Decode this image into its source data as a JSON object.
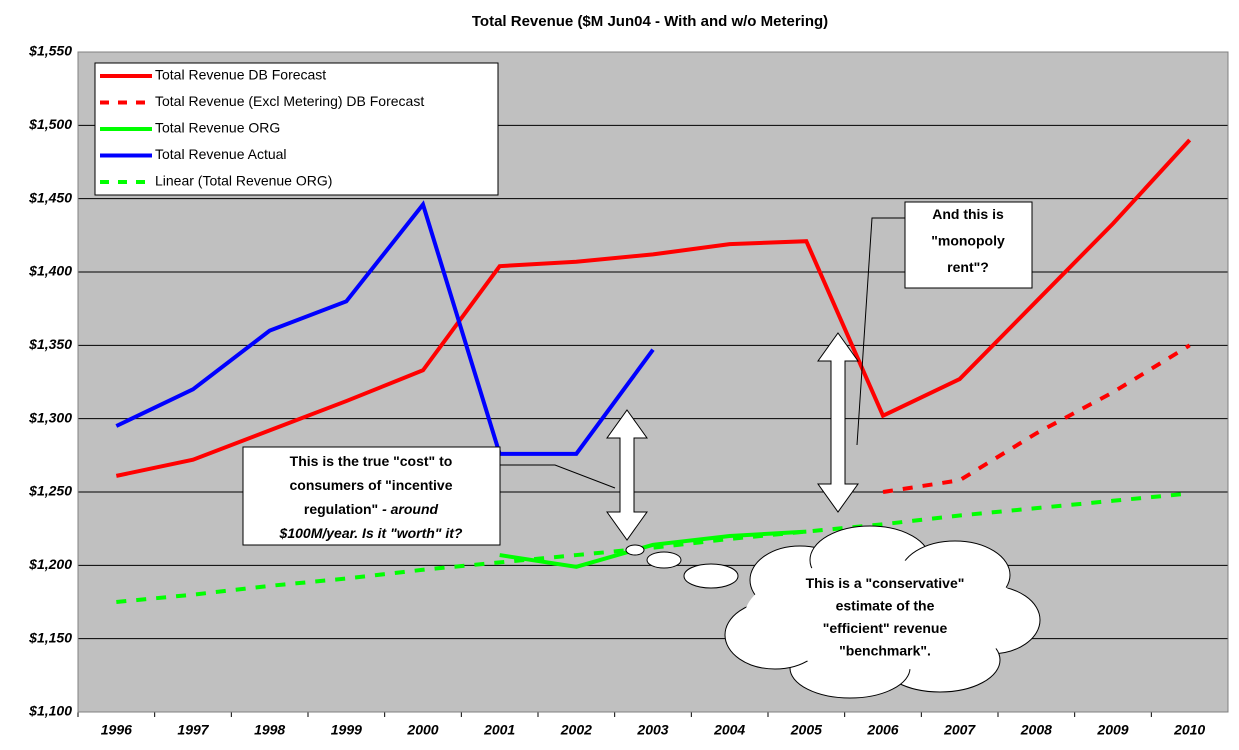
{
  "chart_data": {
    "type": "line",
    "title": "Total Revenue ($M Jun04 - With and w/o Metering)",
    "categories": [
      "1996",
      "1997",
      "1998",
      "1999",
      "2000",
      "2001",
      "2002",
      "2003",
      "2004",
      "2005",
      "2006",
      "2007",
      "2008",
      "2009",
      "2010"
    ],
    "ylim": [
      1100,
      1550
    ],
    "yticks": [
      {
        "value": 1100,
        "label": "$1,100"
      },
      {
        "value": 1150,
        "label": "$1,150"
      },
      {
        "value": 1200,
        "label": "$1,200"
      },
      {
        "value": 1250,
        "label": "$1,250"
      },
      {
        "value": 1300,
        "label": "$1,300"
      },
      {
        "value": 1350,
        "label": "$1,350"
      },
      {
        "value": 1400,
        "label": "$1,400"
      },
      {
        "value": 1450,
        "label": "$1,450"
      },
      {
        "value": 1500,
        "label": "$1,500"
      },
      {
        "value": 1550,
        "label": "$1,550"
      }
    ],
    "grid": true,
    "legend": "upper left",
    "series": [
      {
        "name": "Total Revenue DB Forecast",
        "color": "#ff0000",
        "dashed": false,
        "values": [
          1261,
          1272,
          1292,
          1312,
          1333,
          1404,
          1407,
          1412,
          1419,
          1421,
          1302,
          1327,
          1380,
          1433,
          1490
        ]
      },
      {
        "name": "Total Revenue (Excl Metering) DB Forecast",
        "color": "#ff0000",
        "dashed": true,
        "values": [
          null,
          null,
          null,
          null,
          null,
          null,
          null,
          null,
          null,
          null,
          1250,
          1258,
          1290,
          1318,
          1350
        ]
      },
      {
        "name": "Total Revenue ORG",
        "color": "#00ff00",
        "dashed": false,
        "values": [
          null,
          null,
          null,
          null,
          null,
          1207,
          1199,
          1214,
          1220,
          1223,
          null,
          null,
          null,
          null,
          null
        ]
      },
      {
        "name": "Total Revenue Actual",
        "color": "#0000ff",
        "dashed": false,
        "values": [
          1295,
          1320,
          1360,
          1380,
          1446,
          1276,
          1276,
          1347,
          null,
          null,
          null,
          null,
          null,
          null,
          null
        ]
      },
      {
        "name": "Linear (Total Revenue ORG)",
        "color": "#00ff00",
        "dashed": true,
        "values": [
          1175,
          1180,
          1186,
          1191,
          1197,
          1202,
          1207,
          1212,
          1218,
          1223,
          1228,
          1234,
          1239,
          1244,
          1249
        ]
      }
    ],
    "annotations": [
      {
        "lines": [
          [
            {
              "text": "This is the true \"cost\" to",
              "italic": false
            }
          ],
          [
            {
              "text": "consumers of \"incentive",
              "italic": false
            }
          ],
          [
            {
              "text": "regulation\"",
              "italic": false
            },
            {
              "text": " - around",
              "italic": true
            }
          ],
          [
            {
              "text": "$100M/year.  Is it \"worth\" it?",
              "italic": true
            }
          ]
        ]
      },
      {
        "lines": [
          [
            {
              "text": "And this is",
              "italic": false
            }
          ],
          [
            {
              "text": "\"monopoly",
              "italic": false
            }
          ],
          [
            {
              "text": "rent\"?",
              "italic": false
            }
          ]
        ]
      },
      {
        "lines": [
          [
            {
              "text": "This is a \"conservative\"",
              "italic": false
            }
          ],
          [
            {
              "text": "estimate of the",
              "italic": false
            }
          ],
          [
            {
              "text": "\"efficient\" revenue",
              "italic": false
            }
          ],
          [
            {
              "text": "\"benchmark\".",
              "italic": false
            }
          ]
        ]
      }
    ]
  }
}
